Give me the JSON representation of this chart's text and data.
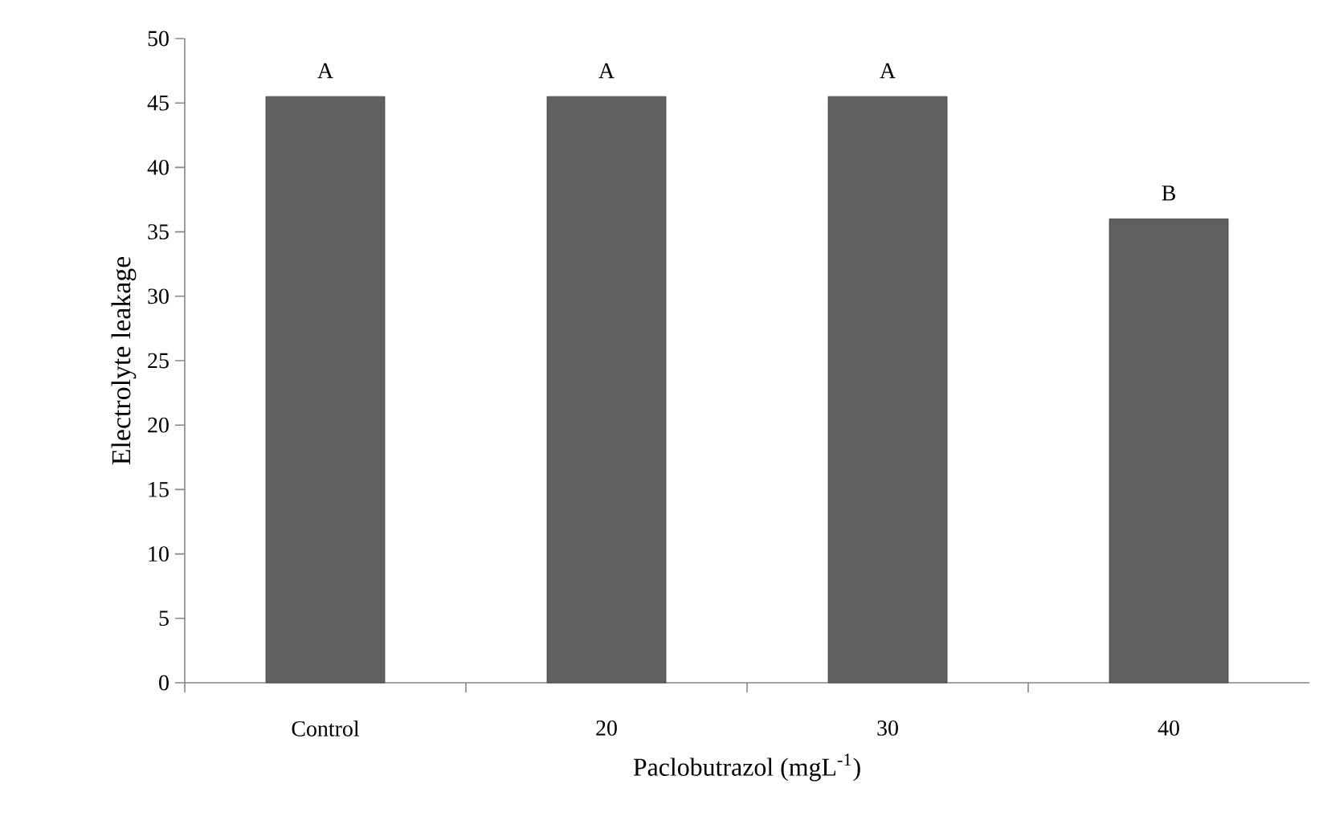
{
  "chart_data": {
    "type": "bar",
    "xlabel": "Paclobutrazol (mgL$^{-1}$)",
    "ylabel": "Electrolyte leakage",
    "categories": [
      "Control",
      "20",
      "30",
      "40"
    ],
    "values": [
      45.5,
      45.5,
      45.5,
      36
    ],
    "color": "#606060",
    "ylim": [
      0,
      50
    ],
    "yticks": [
      0,
      5,
      10,
      15,
      20,
      25,
      30,
      35,
      40,
      45,
      50
    ],
    "annotations": [
      {
        "text": "A",
        "x": "Control",
        "y": 45.5
      },
      {
        "text": "A",
        "x": "20",
        "y": 45.5
      },
      {
        "text": "A",
        "x": "30",
        "y": 45.5
      },
      {
        "text": "B",
        "x": "40",
        "y": 36
      }
    ]
  }
}
